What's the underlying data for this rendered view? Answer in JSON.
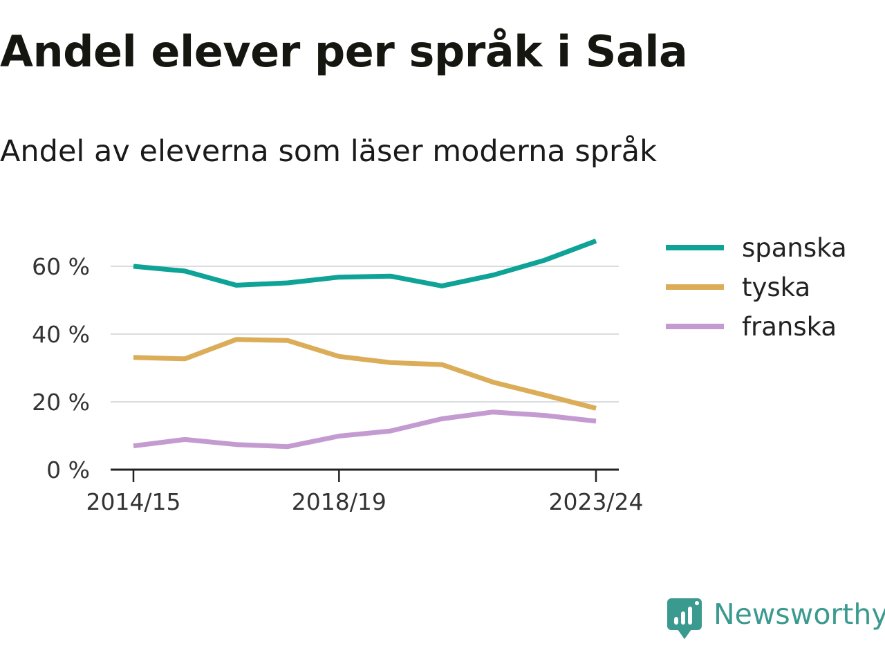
{
  "page": {
    "title": "Andel elever per språk i Sala",
    "subtitle": "Andel av eleverna som läser moderna språk"
  },
  "brand": {
    "name": "Newsworthy",
    "icon": "newsworthy-logo-icon",
    "color": "#3b9a8f"
  },
  "chart_data": {
    "type": "line",
    "title": "Andel elever per språk i Sala",
    "subtitle": "Andel av eleverna som läser moderna språk",
    "xlabel": "",
    "ylabel": "",
    "x": [
      "2014/15",
      "2015/16",
      "2016/17",
      "2017/18",
      "2018/19",
      "2019/20",
      "2020/21",
      "2021/22",
      "2022/23",
      "2023/24"
    ],
    "x_tick_labels": [
      "2014/15",
      "2018/19",
      "2023/24"
    ],
    "y_ticks": [
      0,
      20,
      40,
      60
    ],
    "y_tick_labels": [
      "0 %",
      "20 %",
      "40 %",
      "60 %"
    ],
    "ylim": [
      0,
      70
    ],
    "grid": true,
    "legend": "right",
    "series": [
      {
        "name": "spanska",
        "color": "#0ea396",
        "values": [
          60.0,
          58.6,
          54.4,
          55.1,
          56.8,
          57.1,
          54.2,
          57.4,
          61.8,
          67.5
        ]
      },
      {
        "name": "tyska",
        "color": "#dbad58",
        "values": [
          33.1,
          32.7,
          38.4,
          38.1,
          33.4,
          31.6,
          31.0,
          25.8,
          22.0,
          18.1
        ]
      },
      {
        "name": "franska",
        "color": "#c39bd1",
        "values": [
          7.0,
          8.9,
          7.4,
          6.8,
          9.9,
          11.4,
          15.0,
          17.0,
          16.0,
          14.3
        ]
      }
    ]
  }
}
